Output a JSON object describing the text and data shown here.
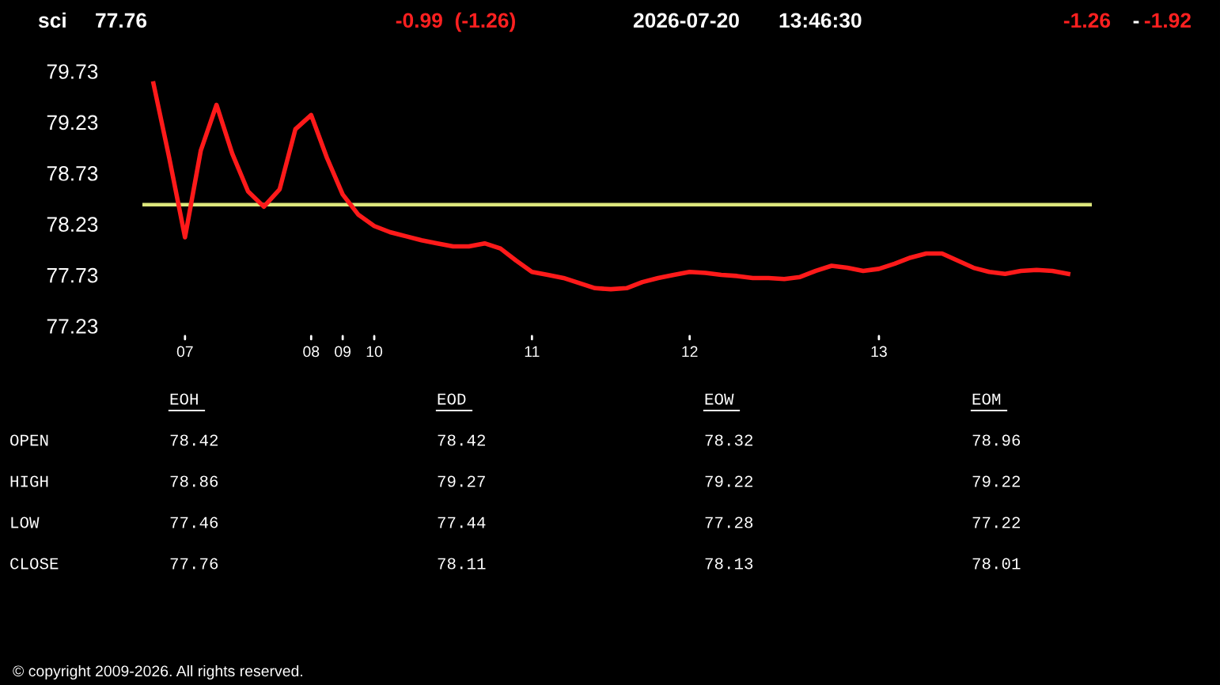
{
  "chart_data": {
    "type": "line",
    "title": "sci",
    "categories": [
      null,
      null,
      "07",
      null,
      null,
      null,
      null,
      null,
      null,
      null,
      "08",
      null,
      "09",
      null,
      "10",
      null,
      null,
      null,
      null,
      null,
      null,
      null,
      null,
      null,
      "11",
      null,
      null,
      null,
      null,
      null,
      null,
      null,
      null,
      null,
      "12",
      null,
      null,
      null,
      null,
      null,
      null,
      null,
      null,
      null,
      null,
      null,
      "13",
      null,
      null,
      null,
      null,
      null,
      null,
      null,
      null,
      null,
      null,
      null,
      null
    ],
    "series": [
      {
        "color": "#ff1a1a",
        "values": [
          79.61,
          78.88,
          78.1,
          78.95,
          79.4,
          78.92,
          78.55,
          78.4,
          78.57,
          79.16,
          79.3,
          78.88,
          78.52,
          78.32,
          78.21,
          78.15,
          78.11,
          78.07,
          78.04,
          78.01,
          78.01,
          78.04,
          77.99,
          77.87,
          77.76,
          77.73,
          77.7,
          77.65,
          77.6,
          77.59,
          77.6,
          77.66,
          77.7,
          77.73,
          77.76,
          77.75,
          77.73,
          77.72,
          77.7,
          77.7,
          77.69,
          77.71,
          77.77,
          77.82,
          77.8,
          77.77,
          77.79,
          77.84,
          77.9,
          77.94,
          77.94,
          77.87,
          77.8,
          77.76,
          77.74,
          77.77,
          77.78,
          77.77,
          77.74
        ]
      }
    ],
    "ylim": [
      77.23,
      79.73
    ],
    "yticks": [
      77.23,
      77.73,
      78.23,
      78.73,
      79.23,
      79.73
    ],
    "ref_lines": [
      {
        "axis": "y",
        "value": 78.42,
        "color": "#dce67c"
      }
    ],
    "grid": false,
    "legend": false,
    "marker": "none",
    "line_style": "solid",
    "annotations": [
      "77.76",
      "-0.99  (-1.26)",
      "2026-07-20",
      "13:46:30",
      "-1.26",
      "-",
      "-1.92",
      "EOH",
      "EOD",
      "EOW",
      "EOM",
      "OPEN",
      "78.42",
      "78.42",
      "78.32",
      "78.96",
      "HIGH",
      "78.86",
      "79.27",
      "79.22",
      "79.22",
      "LOW",
      "77.46",
      "77.44",
      "77.28",
      "77.22",
      "CLOSE",
      "77.76",
      "78.11",
      "78.13",
      "78.01",
      "© copyright 2009-2026. All rights reserved."
    ]
  }
}
